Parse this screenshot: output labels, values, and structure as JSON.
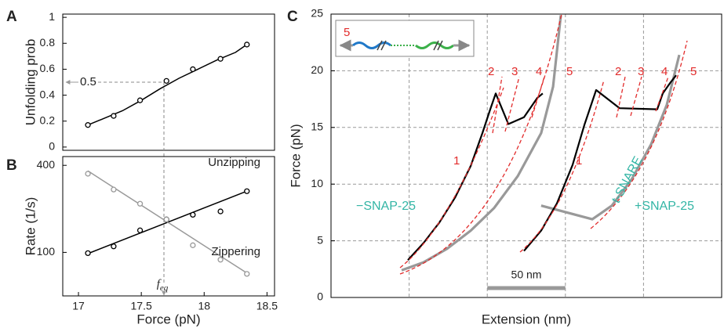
{
  "chart_data": [
    {
      "type": "scatter",
      "panel": "A",
      "ylabel": "Unfolding prob",
      "x": [
        17.075,
        17.28,
        17.49,
        17.7,
        17.91,
        18.13,
        18.34
      ],
      "values": [
        0.17,
        0.24,
        0.36,
        0.51,
        0.6,
        0.68,
        0.79
      ],
      "color": "#000000",
      "fit": {
        "x": [
          17.075,
          17.2,
          17.35,
          17.5,
          17.65,
          17.8,
          17.95,
          18.1,
          18.25,
          18.34
        ],
        "y": [
          0.17,
          0.22,
          0.28,
          0.36,
          0.45,
          0.53,
          0.6,
          0.67,
          0.73,
          0.79
        ]
      },
      "threshold": 0.5,
      "f_eq": 17.68,
      "xlim": [
        16.875,
        18.56
      ],
      "ylim": [
        -0.025,
        1.025
      ],
      "yticks": [
        0,
        0.2,
        0.4,
        0.6,
        0.8,
        1
      ]
    },
    {
      "type": "scatter",
      "panel": "B",
      "ylabel": "Rate (1/s)",
      "xlabel": "Force (pN)",
      "log_y": true,
      "x": [
        17.075,
        17.28,
        17.49,
        17.7,
        17.91,
        18.13,
        18.34
      ],
      "series": [
        {
          "name": "Unzipping",
          "color": "#000000",
          "values": [
            98.8,
            110,
            142,
            169,
            182,
            192,
            265
          ],
          "fit": {
            "x": [
              17.075,
              18.34
            ],
            "y": [
              98,
              265
            ]
          }
        },
        {
          "name": "Zippering",
          "color": "#999999",
          "values": [
            350,
            272,
            217,
            169,
            112,
            89,
            71
          ],
          "fit": {
            "x": [
              17.075,
              18.34
            ],
            "y": [
              366,
              72
            ]
          }
        }
      ],
      "f_eq": 17.68,
      "f_eq_label": "f",
      "f_eq_sub": "eq",
      "xlim": [
        16.875,
        18.56
      ],
      "ylim": [
        50,
        460
      ],
      "xticks": [
        17,
        17.5,
        18,
        18.5
      ],
      "yticks": [
        100,
        400
      ]
    },
    {
      "type": "line",
      "panel": "C",
      "xlabel": "Extension (nm)",
      "ylabel": "Force (pN)",
      "series": [
        {
          "color": "#999999",
          "x": [
            45.2,
            59.2,
            74.3,
            89.4,
            104.4,
            119.5,
            134.5,
            142.1,
            147.1
          ],
          "values": [
            2.4,
            3.1,
            4.3,
            5.9,
            7.9,
            10.7,
            14.5,
            18.6,
            24.9
          ]
        },
        {
          "color": "#000000",
          "x": [
            49.2,
            59.2,
            69.3,
            79.3,
            89.4,
            96.9,
            101.9,
            105.4,
            113.5,
            123.5,
            132,
            135.5
          ],
          "values": [
            3.3,
            4.8,
            6.6,
            8.8,
            11.6,
            14.5,
            16.6,
            18,
            15.3,
            15.9,
            17.6,
            18
          ]
        },
        {
          "color": "#999999",
          "x": [
            134.5,
            167.2,
            179.7,
            192.3,
            204.8,
            214.9,
            222.9
          ],
          "values": [
            8.1,
            6.9,
            8.1,
            10.4,
            13.5,
            17,
            21.4
          ]
        },
        {
          "color": "#000000",
          "x": [
            123.5,
            134.5,
            144.6,
            154.6,
            162.1,
            169.7,
            184.7,
            208.8,
            212.3,
            217.4,
            220.9
          ],
          "values": [
            4.1,
            5.9,
            8.3,
            11.7,
            15.2,
            18.3,
            16.7,
            16.6,
            18,
            19,
            19.6
          ]
        }
      ],
      "fit_labels": [
        "1",
        "2",
        "3",
        "4",
        "5",
        "1",
        "2",
        "3",
        "4",
        "5",
        "5"
      ],
      "annotations": [
        "−SNAP-25",
        "+SNAP-25",
        "t-SNARE"
      ],
      "scale_bar": {
        "value": 50,
        "label": "50 nm"
      },
      "grid": true,
      "xlim": [
        0,
        250
      ],
      "ylim": [
        0,
        25
      ],
      "xticks": [
        50,
        100,
        150,
        200
      ],
      "yticks": [
        0,
        5,
        10,
        15,
        20,
        25
      ]
    }
  ]
}
